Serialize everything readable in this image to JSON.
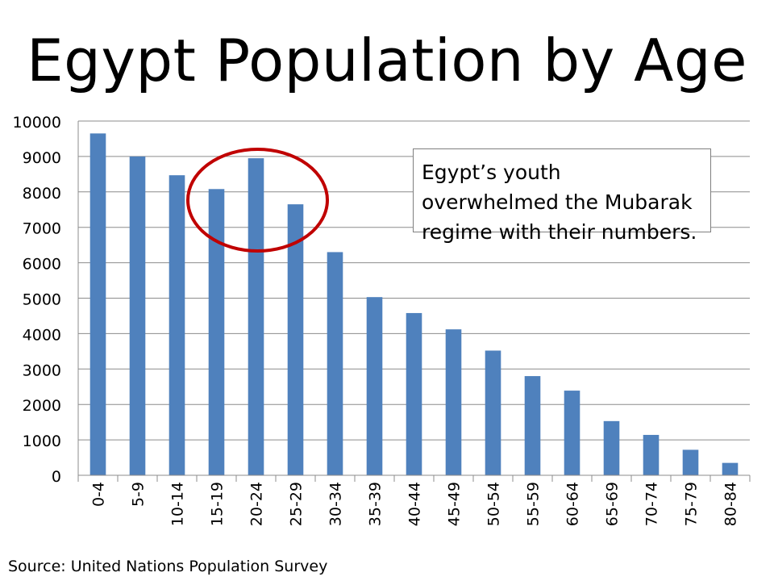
{
  "slide": {
    "title": "Egypt Population by Age",
    "annotation": "Egypt’s youth overwhelmed the Mubarak regime with their numbers.",
    "source": "Source: United Nations Population Survey"
  },
  "chart_data": {
    "type": "bar",
    "title": "Egypt Population by Age",
    "xlabel": "",
    "ylabel": "",
    "categories": [
      "0-4",
      "5-9",
      "10-14",
      "15-19",
      "20-24",
      "25-29",
      "30-34",
      "35-39",
      "40-44",
      "45-49",
      "50-54",
      "55-59",
      "60-64",
      "65-69",
      "70-74",
      "75-79",
      "80-84"
    ],
    "values": [
      9650,
      9000,
      8470,
      8080,
      8950,
      7650,
      6300,
      5030,
      4580,
      4120,
      3520,
      2800,
      2390,
      1530,
      1140,
      720,
      350
    ],
    "ylim": [
      0,
      10000
    ],
    "yticks": [
      0,
      1000,
      2000,
      3000,
      4000,
      5000,
      6000,
      7000,
      8000,
      9000,
      10000
    ],
    "grid": true,
    "legend": "none",
    "bar_color": "#4f81bd",
    "highlight": {
      "shape": "ellipse",
      "categories": [
        "15-19",
        "20-24",
        "25-29"
      ],
      "color": "#c00000"
    }
  }
}
